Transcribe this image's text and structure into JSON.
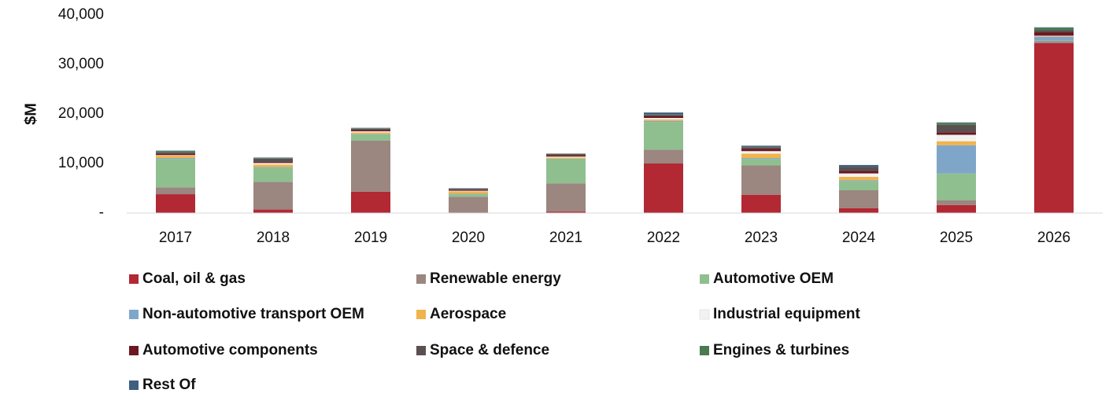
{
  "chart_data": {
    "type": "stacked_bar",
    "y_label": "$M",
    "categories": [
      "2017",
      "2018",
      "2019",
      "2020",
      "2021",
      "2022",
      "2023",
      "2024",
      "2025",
      "2026"
    ],
    "series": [
      {
        "name": "Coal, oil & gas",
        "color": "#b22833",
        "values": [
          3.8,
          0.7,
          4.3,
          0,
          0.3,
          10.0,
          3.7,
          1.0,
          1.6,
          34.3
        ]
      },
      {
        "name": "Renewable energy",
        "color": "#9b8680",
        "values": [
          1.4,
          5.6,
          10.3,
          3.3,
          5.7,
          2.8,
          5.9,
          3.6,
          1.0,
          0.4
        ]
      },
      {
        "name": "Automotive OEM",
        "color": "#8fbf8f",
        "values": [
          5.7,
          2.9,
          1.3,
          0.5,
          5.0,
          5.6,
          1.3,
          1.8,
          5.4,
          0.1
        ]
      },
      {
        "name": "Non-automotive transport OEM",
        "color": "#7fa6c9",
        "values": [
          0.2,
          0.1,
          0.1,
          0.1,
          0,
          0.2,
          0.2,
          0.2,
          5.7,
          0.8
        ]
      },
      {
        "name": "Aerospace",
        "color": "#f0b44c",
        "values": [
          0.5,
          0.5,
          0.3,
          0.5,
          0.2,
          0.3,
          0.9,
          0.7,
          0.8,
          0.1
        ]
      },
      {
        "name": "Industrial equipment",
        "color": "#f2f2f2",
        "values": [
          0.1,
          0.3,
          0.2,
          0.1,
          0.2,
          0.3,
          0.5,
          0.7,
          1.3,
          0.1
        ]
      },
      {
        "name": "Automotive components",
        "color": "#6b1820",
        "values": [
          0.3,
          0.2,
          0.3,
          0.2,
          0.3,
          0.4,
          0.5,
          0.5,
          0.5,
          0.7
        ]
      },
      {
        "name": "Space & defence",
        "color": "#5a5050",
        "values": [
          0.2,
          0.7,
          0.2,
          0.2,
          0.2,
          0.2,
          0.3,
          0.8,
          1.5,
          0.4
        ]
      },
      {
        "name": "Engines & turbines",
        "color": "#4a7a50",
        "values": [
          0.3,
          0.1,
          0.1,
          0,
          0.1,
          0.1,
          0.1,
          0,
          0.4,
          0.5
        ]
      },
      {
        "name": "Rest Of",
        "color": "#3e5f80",
        "values": [
          0.1,
          0.1,
          0.1,
          0.1,
          0,
          0.4,
          0.2,
          0.4,
          0.1,
          0.1
        ]
      }
    ],
    "value_scale": 1000,
    "ylim": [
      0,
      40000
    ],
    "yticks": [
      {
        "value": 0,
        "label": "-"
      },
      {
        "value": 10000,
        "label": "10,000"
      },
      {
        "value": 20000,
        "label": "20,000"
      },
      {
        "value": 30000,
        "label": "30,000"
      },
      {
        "value": 40000,
        "label": "40,000"
      }
    ],
    "legend": "bottom"
  }
}
